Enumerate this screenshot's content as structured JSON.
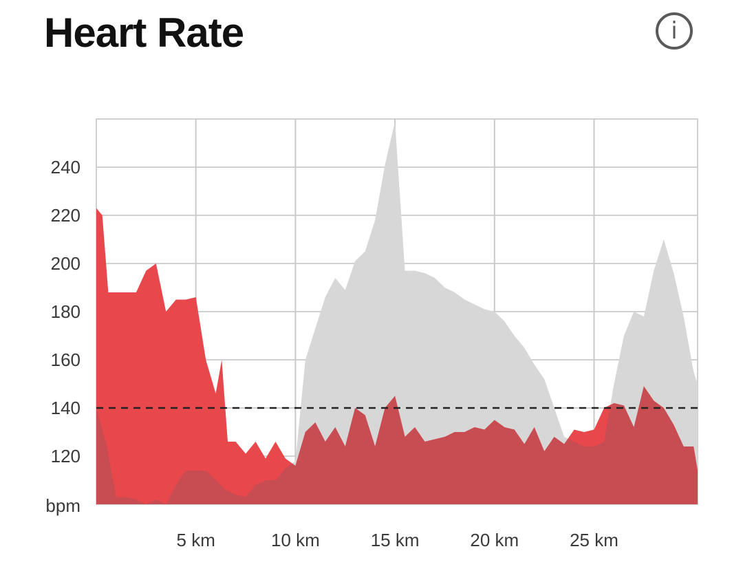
{
  "header": {
    "title": "Heart Rate",
    "info_icon": "info-icon",
    "info_glyph": "i"
  },
  "colors": {
    "primary_fill": "#e8474c",
    "secondary_fill": "#d7d7d7",
    "overlap_fill": "#c84d52",
    "reference_line": "#222222",
    "grid": "#d0d0d0",
    "text": "#3a3a3a"
  },
  "chart_data": {
    "type": "area",
    "xlabel": "",
    "ylabel": "bpm",
    "x_ticks": [
      5,
      10,
      15,
      20,
      25
    ],
    "x_tick_labels": [
      "5 km",
      "10 km",
      "15 km",
      "20 km",
      "25 km"
    ],
    "xlim": [
      0,
      30.2
    ],
    "y_ticks": [
      120,
      140,
      160,
      180,
      200,
      220,
      240
    ],
    "y_tick_labels": [
      "120",
      "140",
      "160",
      "180",
      "200",
      "220",
      "240"
    ],
    "ylim": [
      100,
      260
    ],
    "reference_line": {
      "value": 140,
      "style": "dashed"
    },
    "grid": true,
    "series": [
      {
        "color": "#d7d7d7",
        "points": [
          [
            0,
            140
          ],
          [
            0.5,
            125
          ],
          [
            1,
            103
          ],
          [
            1.5,
            103
          ],
          [
            2,
            102
          ],
          [
            2.5,
            100
          ],
          [
            3,
            102
          ],
          [
            3.5,
            100
          ],
          [
            4,
            108
          ],
          [
            4.5,
            114
          ],
          [
            5,
            114
          ],
          [
            5.5,
            114
          ],
          [
            6,
            110
          ],
          [
            6.5,
            106
          ],
          [
            7,
            104
          ],
          [
            7.5,
            103
          ],
          [
            8,
            108
          ],
          [
            8.5,
            110
          ],
          [
            9,
            110
          ],
          [
            9.5,
            115
          ],
          [
            10,
            118
          ],
          [
            10.5,
            160
          ],
          [
            11,
            173
          ],
          [
            11.5,
            186
          ],
          [
            12,
            194
          ],
          [
            12.5,
            189
          ],
          [
            13,
            201
          ],
          [
            13.5,
            205
          ],
          [
            14,
            218
          ],
          [
            14.5,
            241
          ],
          [
            15,
            259
          ],
          [
            15.5,
            197
          ],
          [
            16,
            197
          ],
          [
            16.5,
            196
          ],
          [
            17,
            194
          ],
          [
            17.5,
            190
          ],
          [
            18,
            188
          ],
          [
            18.5,
            185
          ],
          [
            19,
            183
          ],
          [
            19.5,
            181
          ],
          [
            20,
            180
          ],
          [
            20.5,
            176
          ],
          [
            21,
            170
          ],
          [
            21.5,
            165
          ],
          [
            22,
            158
          ],
          [
            22.5,
            152
          ],
          [
            23,
            140
          ],
          [
            23.5,
            128
          ],
          [
            24,
            126
          ],
          [
            24.5,
            124
          ],
          [
            25,
            124
          ],
          [
            25.5,
            126
          ],
          [
            26,
            150
          ],
          [
            26.5,
            170
          ],
          [
            27,
            180
          ],
          [
            27.5,
            178
          ],
          [
            28,
            197
          ],
          [
            28.5,
            210
          ],
          [
            29,
            196
          ],
          [
            29.5,
            178
          ],
          [
            30,
            155
          ],
          [
            30.2,
            150
          ]
        ]
      },
      {
        "color": "#e8474c",
        "points": [
          [
            0,
            223
          ],
          [
            0.3,
            220
          ],
          [
            0.6,
            188
          ],
          [
            1,
            188
          ],
          [
            1.5,
            188
          ],
          [
            2,
            188
          ],
          [
            2.5,
            197
          ],
          [
            3,
            200
          ],
          [
            3.5,
            180
          ],
          [
            4,
            185
          ],
          [
            4.5,
            185
          ],
          [
            5,
            186
          ],
          [
            5.5,
            160
          ],
          [
            6,
            146
          ],
          [
            6.3,
            160
          ],
          [
            6.6,
            126
          ],
          [
            7,
            126
          ],
          [
            7.5,
            121
          ],
          [
            8,
            126
          ],
          [
            8.5,
            119
          ],
          [
            9,
            126
          ],
          [
            9.5,
            119
          ],
          [
            10,
            116
          ],
          [
            10.5,
            130
          ],
          [
            11,
            134
          ],
          [
            11.5,
            126
          ],
          [
            12,
            132
          ],
          [
            12.5,
            124
          ],
          [
            13,
            140
          ],
          [
            13.5,
            137
          ],
          [
            14,
            124
          ],
          [
            14.5,
            140
          ],
          [
            15,
            145
          ],
          [
            15.5,
            128
          ],
          [
            16,
            132
          ],
          [
            16.5,
            126
          ],
          [
            17,
            127
          ],
          [
            17.5,
            128
          ],
          [
            18,
            130
          ],
          [
            18.5,
            130
          ],
          [
            19,
            132
          ],
          [
            19.5,
            131
          ],
          [
            20,
            135
          ],
          [
            20.5,
            132
          ],
          [
            21,
            131
          ],
          [
            21.5,
            125
          ],
          [
            22,
            132
          ],
          [
            22.5,
            122
          ],
          [
            23,
            128
          ],
          [
            23.5,
            125
          ],
          [
            24,
            131
          ],
          [
            24.5,
            130
          ],
          [
            25,
            131
          ],
          [
            25.5,
            140
          ],
          [
            26,
            142
          ],
          [
            26.5,
            141
          ],
          [
            27,
            132
          ],
          [
            27.5,
            149
          ],
          [
            28,
            143
          ],
          [
            28.5,
            140
          ],
          [
            29,
            133
          ],
          [
            29.5,
            124
          ],
          [
            30,
            124
          ],
          [
            30.2,
            114
          ]
        ]
      }
    ]
  }
}
